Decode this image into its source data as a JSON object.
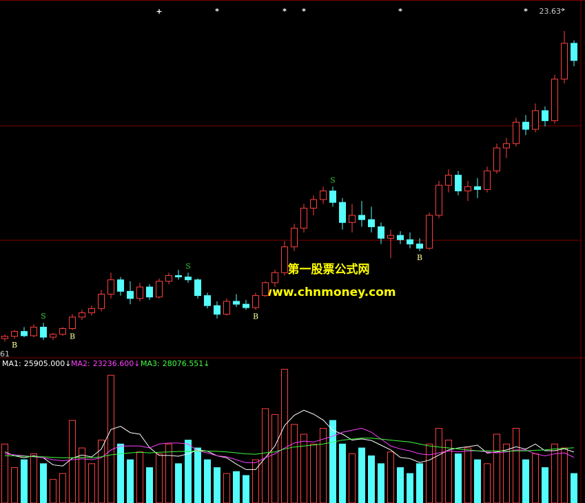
{
  "chart_data": [
    {
      "type": "candlestick",
      "candles": [
        [
          12.9,
          13.05,
          12.8,
          12.98
        ],
        [
          12.98,
          13.2,
          12.9,
          13.15
        ],
        [
          13.15,
          13.3,
          12.95,
          13.0
        ],
        [
          13.0,
          13.4,
          12.95,
          13.3
        ],
        [
          13.3,
          13.45,
          12.85,
          12.95
        ],
        [
          12.95,
          13.1,
          12.85,
          13.05
        ],
        [
          13.05,
          13.3,
          13.0,
          13.25
        ],
        [
          13.25,
          13.75,
          13.2,
          13.65
        ],
        [
          13.65,
          13.9,
          13.55,
          13.8
        ],
        [
          13.8,
          14.05,
          13.7,
          13.95
        ],
        [
          13.95,
          14.6,
          13.85,
          14.45
        ],
        [
          14.45,
          15.2,
          14.3,
          14.95
        ],
        [
          14.95,
          15.05,
          14.4,
          14.55
        ],
        [
          14.55,
          14.9,
          14.1,
          14.3
        ],
        [
          14.3,
          14.85,
          14.2,
          14.7
        ],
        [
          14.7,
          14.8,
          14.25,
          14.35
        ],
        [
          14.35,
          15.0,
          14.3,
          14.9
        ],
        [
          14.9,
          15.2,
          14.8,
          15.1
        ],
        [
          15.1,
          15.3,
          14.95,
          15.05
        ],
        [
          15.05,
          15.2,
          14.85,
          14.95
        ],
        [
          14.95,
          15.0,
          14.3,
          14.4
        ],
        [
          14.4,
          14.5,
          13.95,
          14.05
        ],
        [
          14.05,
          14.2,
          13.6,
          13.75
        ],
        [
          13.75,
          14.3,
          13.7,
          14.2
        ],
        [
          14.2,
          14.45,
          14.0,
          14.1
        ],
        [
          14.1,
          14.25,
          13.9,
          13.98
        ],
        [
          13.98,
          14.5,
          13.9,
          14.4
        ],
        [
          14.4,
          14.9,
          14.35,
          14.85
        ],
        [
          14.85,
          15.3,
          14.7,
          15.2
        ],
        [
          15.2,
          16.3,
          15.1,
          16.1
        ],
        [
          16.1,
          16.9,
          15.95,
          16.75
        ],
        [
          16.75,
          17.6,
          16.6,
          17.45
        ],
        [
          17.45,
          17.9,
          17.2,
          17.75
        ],
        [
          17.75,
          18.2,
          17.6,
          18.05
        ],
        [
          18.05,
          18.2,
          17.5,
          17.65
        ],
        [
          17.65,
          17.8,
          16.7,
          16.95
        ],
        [
          16.95,
          17.6,
          16.6,
          17.2
        ],
        [
          17.2,
          17.7,
          16.8,
          17.05
        ],
        [
          17.05,
          17.5,
          16.6,
          16.8
        ],
        [
          16.8,
          16.95,
          16.2,
          16.4
        ],
        [
          16.4,
          16.7,
          15.7,
          16.5
        ],
        [
          16.5,
          16.65,
          16.2,
          16.35
        ],
        [
          16.35,
          16.6,
          16.05,
          16.2
        ],
        [
          16.2,
          16.4,
          15.95,
          16.05
        ],
        [
          16.05,
          17.3,
          16.0,
          17.2
        ],
        [
          17.2,
          18.4,
          17.1,
          18.25
        ],
        [
          18.25,
          18.8,
          18.0,
          18.6
        ],
        [
          18.6,
          18.75,
          17.9,
          18.05
        ],
        [
          18.05,
          18.4,
          17.7,
          18.2
        ],
        [
          18.2,
          18.5,
          17.8,
          18.1
        ],
        [
          18.1,
          18.9,
          18.0,
          18.75
        ],
        [
          18.75,
          19.7,
          18.65,
          19.55
        ],
        [
          19.55,
          19.9,
          19.2,
          19.7
        ],
        [
          19.7,
          20.6,
          19.6,
          20.45
        ],
        [
          20.45,
          20.7,
          20.0,
          20.2
        ],
        [
          20.2,
          21.1,
          20.1,
          20.85
        ],
        [
          20.85,
          21.0,
          20.3,
          20.5
        ],
        [
          20.5,
          22.1,
          20.4,
          21.95
        ],
        [
          21.95,
          23.63,
          21.8,
          23.2
        ],
        [
          23.2,
          23.3,
          22.4,
          22.6
        ]
      ],
      "ylim": [
        12.35,
        24.35
      ],
      "grid_levels": [
        20.32,
        16.33
      ],
      "colors": {
        "up": "#ff4040",
        "down": "#54fcfc",
        "grid": "#800000"
      },
      "signals": [
        {
          "index": 1,
          "label": "B",
          "color": "#ffff99",
          "place": "below"
        },
        {
          "index": 4,
          "label": "S",
          "color": "#33cc33",
          "place": "above"
        },
        {
          "index": 7,
          "label": "B",
          "color": "#ffff99",
          "place": "below"
        },
        {
          "index": 19,
          "label": "S",
          "color": "#33cc33",
          "place": "above"
        },
        {
          "index": 26,
          "label": "B",
          "color": "#ffff99",
          "place": "below"
        },
        {
          "index": 34,
          "label": "S",
          "color": "#33cc33",
          "place": "above"
        },
        {
          "index": 43,
          "label": "B",
          "color": "#ffff99",
          "place": "below"
        }
      ],
      "top_marks": [
        {
          "index": 16,
          "label": "+"
        },
        {
          "index": 22,
          "label": "*"
        },
        {
          "index": 29,
          "label": "*"
        },
        {
          "index": 31,
          "label": "*"
        },
        {
          "index": 41,
          "label": "*"
        },
        {
          "index": 54,
          "label": "*"
        }
      ],
      "bottom_left_label": "61",
      "watermark": [
        "第一股票公式网",
        "www.chnmoney.com"
      ]
    },
    {
      "type": "bar",
      "values": [
        30000,
        18000,
        22000,
        25000,
        20000,
        12000,
        15000,
        42000,
        28000,
        20000,
        32000,
        65000,
        30000,
        22000,
        26000,
        18000,
        25000,
        30000,
        20000,
        32000,
        28000,
        22000,
        18000,
        15000,
        16000,
        14000,
        22000,
        48000,
        45000,
        68000,
        40000,
        35000,
        30000,
        38000,
        42000,
        30000,
        25000,
        28000,
        24000,
        20000,
        26000,
        18000,
        15000,
        20000,
        30000,
        38000,
        32000,
        25000,
        28000,
        22000,
        20000,
        35000,
        30000,
        38000,
        22000,
        25000,
        18000,
        30000,
        28000,
        15000
      ],
      "ylim": [
        0,
        70000
      ],
      "series": [
        {
          "name": "MA1:",
          "color": "#ffffff",
          "last_label": "25905.000",
          "trend": "↓",
          "values": [
            26000,
            24000,
            23000,
            24000,
            23000,
            19400,
            18800,
            22800,
            24400,
            23400,
            27400,
            37400,
            39000,
            35800,
            35000,
            28200,
            24200,
            24200,
            23800,
            25000,
            27000,
            26400,
            24000,
            23000,
            19800,
            17000,
            17000,
            23000,
            29000,
            39400,
            44600,
            47200,
            45200,
            42200,
            37000,
            35000,
            32000,
            32600,
            31800,
            29400,
            27000,
            23200,
            22600,
            20600,
            21800,
            24400,
            27000,
            28000,
            28600,
            29400,
            25400,
            26000,
            27000,
            28600,
            27400,
            30000,
            26600,
            26600,
            27600,
            25905
          ]
        },
        {
          "name": "MA2:",
          "color": "#ff40ff",
          "last_label": "23236.600",
          "trend": "↓",
          "values": [
            25000,
            24500,
            24000,
            23500,
            23000,
            22000,
            21500,
            22000,
            22500,
            22000,
            23000,
            27000,
            29000,
            29000,
            29000,
            28000,
            30000,
            30500,
            30500,
            30000,
            26500,
            25500,
            24000,
            23500,
            22000,
            20500,
            20500,
            23000,
            25000,
            28000,
            30500,
            31500,
            31000,
            32500,
            34000,
            36000,
            37000,
            38000,
            36000,
            32500,
            29000,
            27500,
            26500,
            25000,
            24500,
            25500,
            26500,
            26000,
            26500,
            26500,
            26000,
            25500,
            26000,
            27000,
            27000,
            25000,
            24000,
            25000,
            25500,
            23236.6
          ]
        },
        {
          "name": "MA3:",
          "color": "#40ff40",
          "last_label": "28076.551",
          "trend": "↓",
          "values": [
            24000,
            24000,
            23800,
            23600,
            23500,
            23200,
            23000,
            23000,
            23200,
            23000,
            23500,
            24500,
            25000,
            25500,
            25800,
            25500,
            25800,
            26000,
            26200,
            26300,
            26500,
            26400,
            26300,
            26000,
            25500,
            25000,
            24800,
            25500,
            26000,
            27500,
            28500,
            29000,
            29500,
            30000,
            31000,
            32000,
            32500,
            33000,
            33000,
            32500,
            32000,
            31500,
            31000,
            30000,
            29000,
            28500,
            28000,
            27500,
            27000,
            26500,
            26500,
            26500,
            26300,
            26500,
            26500,
            26800,
            27000,
            27500,
            27800,
            28076.551
          ]
        }
      ]
    }
  ]
}
